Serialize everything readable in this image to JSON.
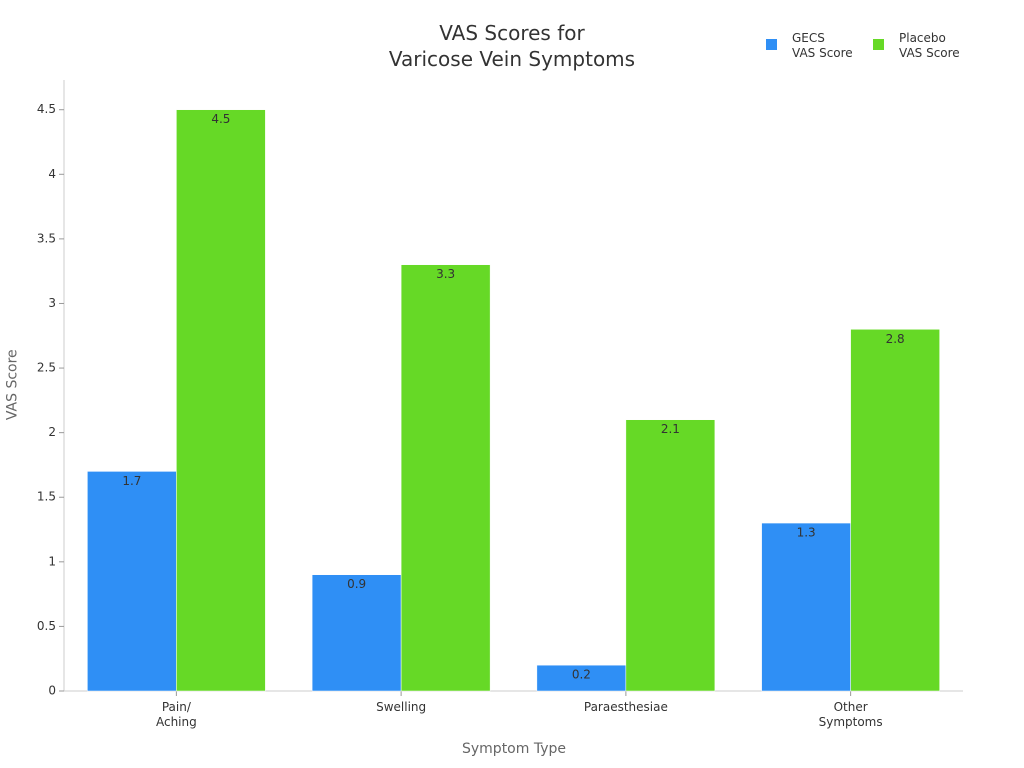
{
  "chart_data": {
    "type": "bar",
    "title": "VAS Scores for\nVaricose Vein Symptoms",
    "x_label": "Symptom Type",
    "y_label": "VAS Score",
    "categories": [
      "Pain/\nAching",
      "Swelling",
      "Paraesthesiae",
      "Other\nSymptoms"
    ],
    "series": [
      {
        "name": "GECS\nVAS Score",
        "color": "#2f8ff5",
        "values": [
          1.7,
          0.9,
          0.2,
          1.3
        ]
      },
      {
        "name": "Placebo\nVAS Score",
        "color": "#66d926",
        "values": [
          4.5,
          3.3,
          2.1,
          2.8
        ]
      }
    ],
    "ylim": [
      0,
      4.73
    ],
    "yticks": [
      0,
      0.5,
      1,
      1.5,
      2,
      2.5,
      3,
      3.5,
      4,
      4.5
    ],
    "grid": false,
    "legend": "top-right"
  }
}
